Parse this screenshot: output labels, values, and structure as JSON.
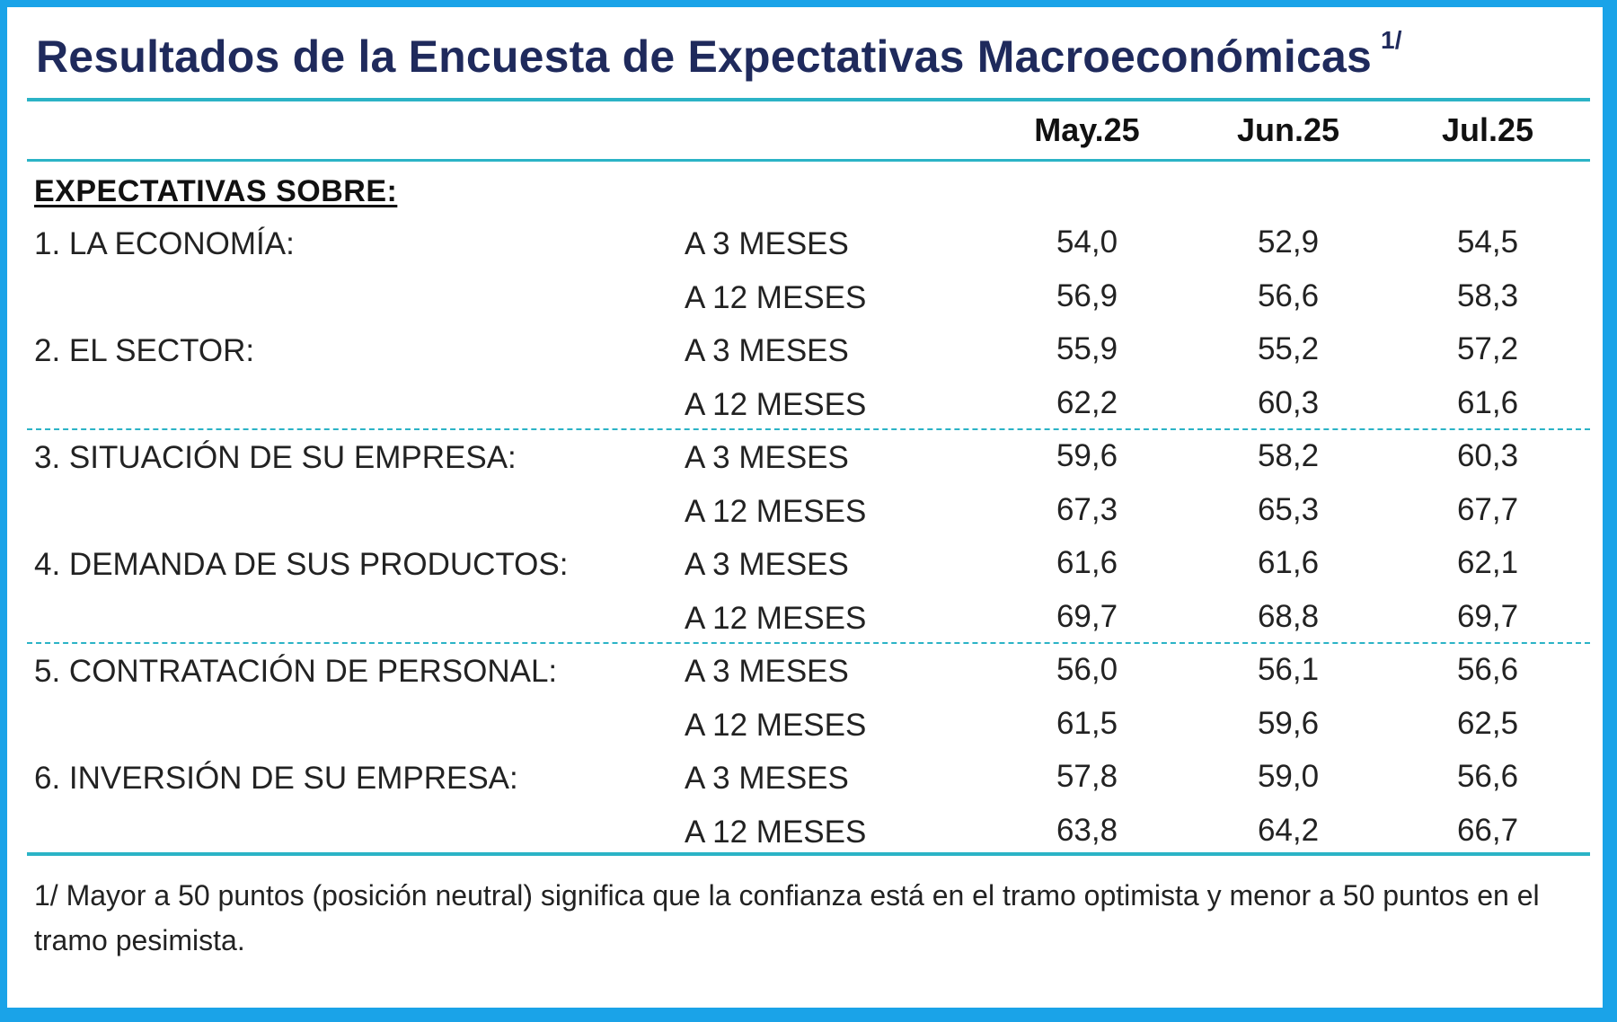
{
  "title": "Resultados de la Encuesta de Expectativas Macroeconómicas",
  "title_note": "1/",
  "colors": {
    "accent": "#2bb3c6",
    "frame": "#1aa3e8",
    "title": "#1f2a5c"
  },
  "chart_data": {
    "type": "table",
    "columns": [
      "May.25",
      "Jun.25",
      "Jul.25"
    ],
    "section_label": "EXPECTATIVAS SOBRE:",
    "rows": [
      {
        "category": "1. LA ECONOMÍA:",
        "horizon": "A 3 MESES",
        "values": [
          "54,0",
          "52,9",
          "54,5"
        ]
      },
      {
        "category": "",
        "horizon": "A 12 MESES",
        "values": [
          "56,9",
          "56,6",
          "58,3"
        ]
      },
      {
        "category": "2. EL SECTOR:",
        "horizon": "A 3 MESES",
        "values": [
          "55,9",
          "55,2",
          "57,2"
        ]
      },
      {
        "category": "",
        "horizon": "A 12 MESES",
        "values": [
          "62,2",
          "60,3",
          "61,6"
        ]
      },
      {
        "category": "3. SITUACIÓN DE SU EMPRESA:",
        "horizon": "A 3 MESES",
        "values": [
          "59,6",
          "58,2",
          "60,3"
        ]
      },
      {
        "category": "",
        "horizon": "A 12 MESES",
        "values": [
          "67,3",
          "65,3",
          "67,7"
        ]
      },
      {
        "category": "4. DEMANDA DE SUS PRODUCTOS:",
        "horizon": "A 3 MESES",
        "values": [
          "61,6",
          "61,6",
          "62,1"
        ]
      },
      {
        "category": "",
        "horizon": "A 12 MESES",
        "values": [
          "69,7",
          "68,8",
          "69,7"
        ]
      },
      {
        "category": "5. CONTRATACIÓN DE PERSONAL:",
        "horizon": "A 3 MESES",
        "values": [
          "56,0",
          "56,1",
          "56,6"
        ]
      },
      {
        "category": "",
        "horizon": "A 12 MESES",
        "values": [
          "61,5",
          "59,6",
          "62,5"
        ]
      },
      {
        "category": "6. INVERSIÓN DE SU EMPRESA:",
        "horizon": "A 3 MESES",
        "values": [
          "57,8",
          "59,0",
          "56,6"
        ]
      },
      {
        "category": "",
        "horizon": "A 12 MESES",
        "values": [
          "63,8",
          "64,2",
          "66,7"
        ]
      }
    ]
  },
  "footnote": "1/ Mayor a 50 puntos (posición neutral) significa que la confianza está en el tramo optimista y menor a 50 puntos en el tramo pesimista."
}
